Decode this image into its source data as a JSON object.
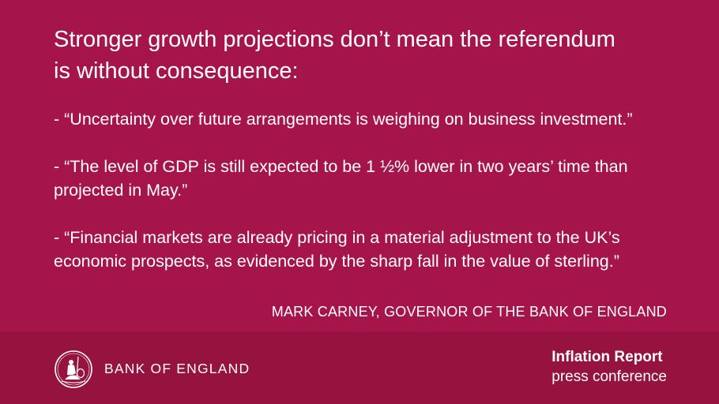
{
  "headline": {
    "line1": "Stronger growth projections don’t mean the referendum",
    "line2": "is without consequence:"
  },
  "quotes": [
    {
      "lines": [
        "- “Uncertainty over future arrangements is weighing on business investment.”"
      ]
    },
    {
      "lines": [
        "- “The level of GDP is still expected to be 1 ½% lower in two years’ time than",
        "projected in May.”"
      ]
    },
    {
      "lines": [
        "- “Financial markets are already pricing in a material adjustment to the UK’s",
        "economic prospects, as evidenced by the sharp fall in the value of sterling.”"
      ]
    }
  ],
  "attribution": "MARK CARNEY, GOVERNOR OF THE BANK OF ENGLAND",
  "footer": {
    "bank_name": "BANK OF ENGLAND",
    "logo_icon": "britannia-seal-icon",
    "report_title": "Inflation Report",
    "report_subtitle": "press conference"
  },
  "colors": {
    "background": "#a6154a",
    "footer_background": "#96123f",
    "text": "#ffffff"
  }
}
